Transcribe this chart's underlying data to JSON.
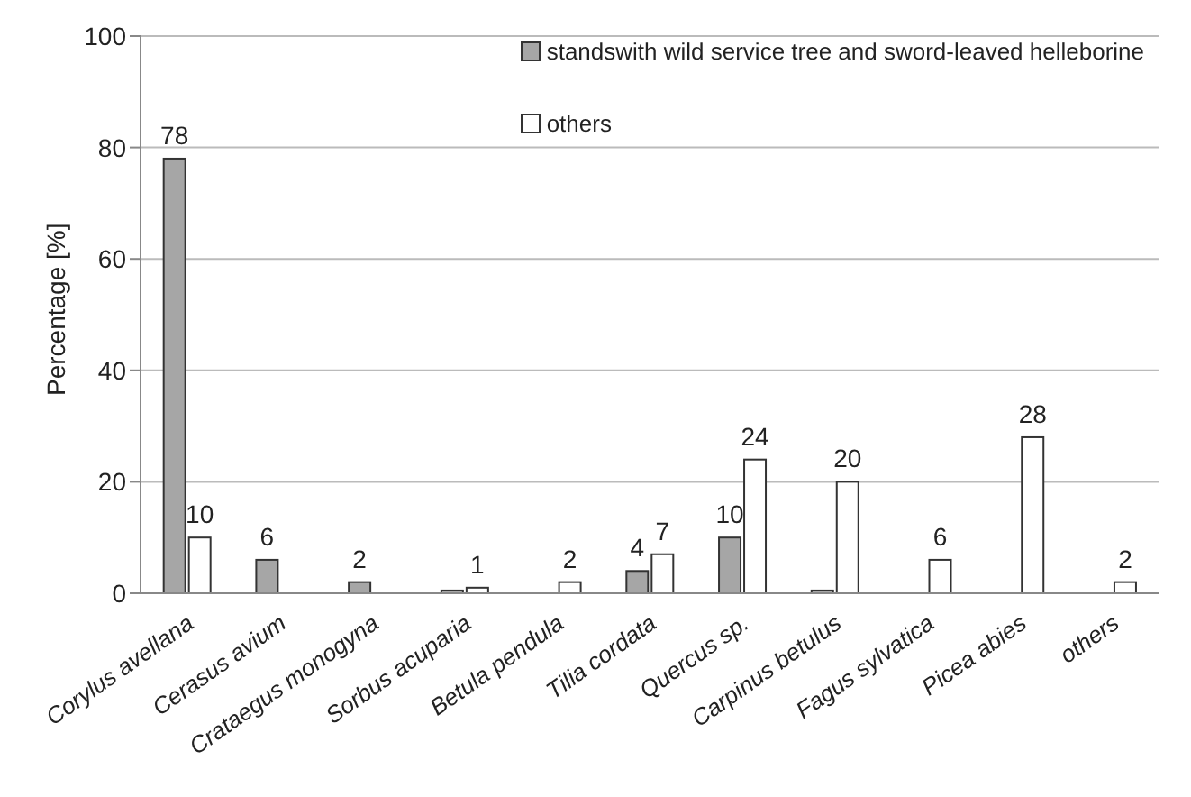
{
  "chart_data": {
    "type": "bar",
    "ylabel": "Percentage [%]",
    "categories": [
      "Corylus avellana",
      "Cerasus avium",
      "Crataegus monogyna",
      "Sorbus acuparia",
      "Betula pendula",
      "Tilia cordata",
      "Quercus sp.",
      "Carpinus betulus",
      "Fagus sylvatica",
      "Picea abies",
      "others"
    ],
    "series": [
      {
        "name": "standswith wild service tree and sword-leaved helleborine",
        "color": "#a6a6a6",
        "values": [
          78,
          6,
          2,
          0.5,
          0,
          4,
          10,
          0.5,
          0,
          0,
          0
        ],
        "value_labels": [
          "78",
          "6",
          "2",
          null,
          null,
          "4",
          "10",
          null,
          null,
          null,
          null
        ]
      },
      {
        "name": "others",
        "color": "#ffffff",
        "values": [
          10,
          null,
          null,
          1,
          2,
          7,
          24,
          20,
          6,
          28,
          2
        ],
        "value_labels": [
          "10",
          null,
          null,
          "1",
          "2",
          "7",
          "24",
          "20",
          "6",
          "28",
          "2"
        ]
      }
    ],
    "ylim": [
      0,
      100
    ],
    "yticks": [
      0,
      20,
      40,
      60,
      80,
      100
    ],
    "grid": "y",
    "legend": "top right"
  }
}
